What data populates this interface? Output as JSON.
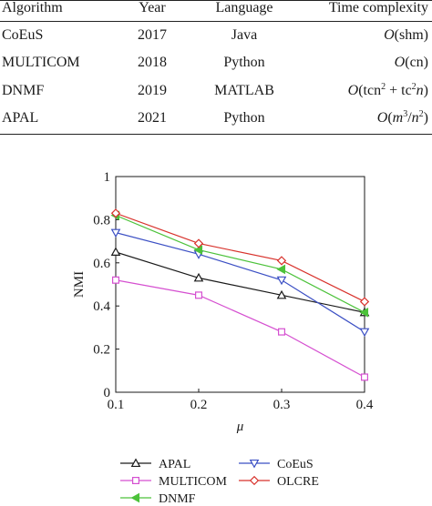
{
  "table": {
    "headers": [
      "Algorithm",
      "Year",
      "Language",
      "Time complexity"
    ],
    "rows": [
      {
        "algorithm": "CoEuS",
        "year": "2017",
        "language": "Java",
        "complexity_fn": "O",
        "complexity_arg": "shm"
      },
      {
        "algorithm": "MULTICOM",
        "year": "2018",
        "language": "Python",
        "complexity_fn": "O",
        "complexity_arg": "cn"
      },
      {
        "algorithm": "DNMF",
        "year": "2019",
        "language": "MATLAB",
        "complexity_fn": "O",
        "complexity_arg_a": "tcn",
        "complexity_exp_a": "2",
        "complexity_plus": " + ",
        "complexity_arg_b": "tc",
        "complexity_exp_b": "2",
        "complexity_var": "n"
      },
      {
        "algorithm": "APAL",
        "year": "2021",
        "language": "Python",
        "complexity_fn": "O",
        "complexity_m": "m",
        "complexity_exp_m": "3",
        "complexity_div": "/",
        "complexity_n": "n",
        "complexity_exp_n": "2"
      }
    ]
  },
  "chart_data": {
    "type": "line",
    "xlabel": "μ",
    "ylabel": "NMI",
    "x": [
      0.1,
      0.2,
      0.3,
      0.4
    ],
    "xticks": [
      "0.1",
      "0.2",
      "0.3",
      "0.4"
    ],
    "yticks": [
      "0",
      "0.2",
      "0.4",
      "0.6",
      "0.8",
      "1"
    ],
    "xlim": [
      0.1,
      0.4
    ],
    "ylim": [
      0,
      1
    ],
    "grid": false,
    "legend_position": "bottom",
    "series": [
      {
        "name": "APAL",
        "values": [
          0.65,
          0.53,
          0.45,
          0.37
        ],
        "color": "#1a1a1a",
        "marker": "triangle-up"
      },
      {
        "name": "CoEuS",
        "values": [
          0.74,
          0.64,
          0.52,
          0.28
        ],
        "color": "#3b4fc4",
        "marker": "triangle-down"
      },
      {
        "name": "MULTICOM",
        "values": [
          0.52,
          0.45,
          0.28,
          0.07
        ],
        "color": "#d54fd0",
        "marker": "square"
      },
      {
        "name": "OLCRE",
        "values": [
          0.83,
          0.69,
          0.61,
          0.42
        ],
        "color": "#d8322c",
        "marker": "diamond"
      },
      {
        "name": "DNMF",
        "values": [
          0.82,
          0.66,
          0.57,
          0.37
        ],
        "color": "#4cc23a",
        "marker": "triangle-left"
      }
    ]
  }
}
